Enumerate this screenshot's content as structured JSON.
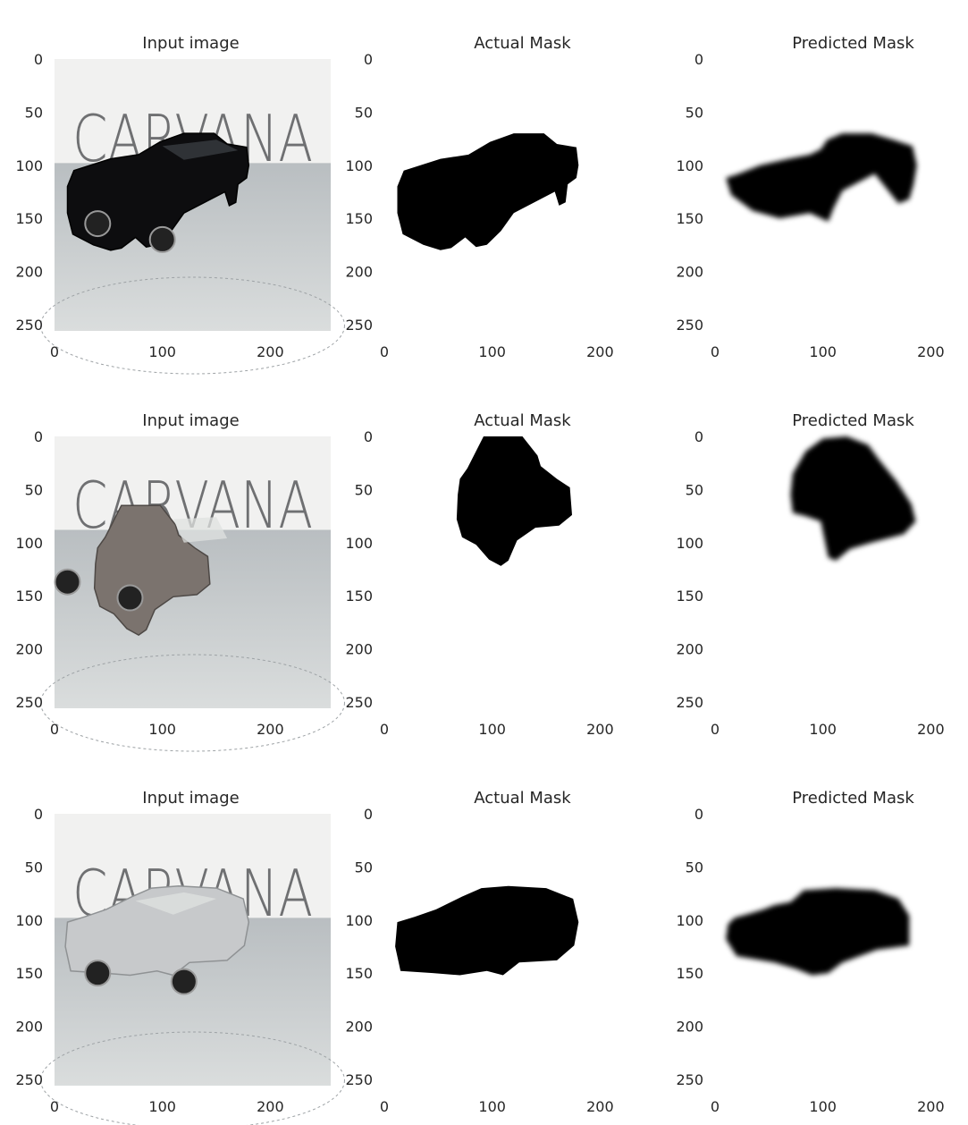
{
  "chart_data": [
    {
      "type": "image",
      "title": "Input image",
      "xticks": [
        "0",
        "100",
        "200"
      ],
      "yticks": [
        "0",
        "50",
        "100",
        "150",
        "200",
        "250"
      ],
      "xlim": [
        0,
        256
      ],
      "ylim": [
        256,
        0
      ],
      "grid": false,
      "watermark": "CARVANA"
    },
    {
      "type": "image",
      "title": "Actual Mask",
      "xticks": [
        "0",
        "100",
        "200"
      ],
      "yticks": [
        "0",
        "50",
        "100",
        "150",
        "200",
        "250"
      ],
      "xlim": [
        0,
        256
      ],
      "ylim": [
        256,
        0
      ],
      "grid": false
    },
    {
      "type": "image",
      "title": "Predicted Mask",
      "xticks": [
        "0",
        "100",
        "200"
      ],
      "yticks": [
        "0",
        "50",
        "100",
        "150",
        "200",
        "250"
      ],
      "xlim": [
        0,
        256
      ],
      "ylim": [
        256,
        0
      ],
      "grid": false
    },
    {
      "type": "image",
      "title": "Input image",
      "xticks": [
        "0",
        "100",
        "200"
      ],
      "yticks": [
        "0",
        "50",
        "100",
        "150",
        "200",
        "250"
      ],
      "xlim": [
        0,
        256
      ],
      "ylim": [
        256,
        0
      ],
      "grid": false,
      "watermark": "CARVANA"
    },
    {
      "type": "image",
      "title": "Actual Mask",
      "xticks": [
        "0",
        "100",
        "200"
      ],
      "yticks": [
        "0",
        "50",
        "100",
        "150",
        "200",
        "250"
      ],
      "xlim": [
        0,
        256
      ],
      "ylim": [
        256,
        0
      ],
      "grid": false
    },
    {
      "type": "image",
      "title": "Predicted Mask",
      "xticks": [
        "0",
        "100",
        "200"
      ],
      "yticks": [
        "0",
        "50",
        "100",
        "150",
        "200",
        "250"
      ],
      "xlim": [
        0,
        256
      ],
      "ylim": [
        256,
        0
      ],
      "grid": false
    },
    {
      "type": "image",
      "title": "Input image",
      "xticks": [
        "0",
        "100",
        "200"
      ],
      "yticks": [
        "0",
        "50",
        "100",
        "150",
        "200",
        "250"
      ],
      "xlim": [
        0,
        256
      ],
      "ylim": [
        256,
        0
      ],
      "grid": false,
      "watermark": "CARVANA"
    },
    {
      "type": "image",
      "title": "Actual Mask",
      "xticks": [
        "0",
        "100",
        "200"
      ],
      "yticks": [
        "0",
        "50",
        "100",
        "150",
        "200",
        "250"
      ],
      "xlim": [
        0,
        256
      ],
      "ylim": [
        256,
        0
      ],
      "grid": false
    },
    {
      "type": "image",
      "title": "Predicted Mask",
      "xticks": [
        "0",
        "100",
        "200"
      ],
      "yticks": [
        "0",
        "50",
        "100",
        "150",
        "200",
        "250"
      ],
      "xlim": [
        0,
        256
      ],
      "ylim": [
        256,
        0
      ],
      "grid": false
    }
  ],
  "colors": {
    "mask": "#000000",
    "background": "#ffffff",
    "text": "#262626",
    "floor": "#bfc4c6",
    "wall": "#f1f1f0",
    "watermark": "#6f7072"
  }
}
